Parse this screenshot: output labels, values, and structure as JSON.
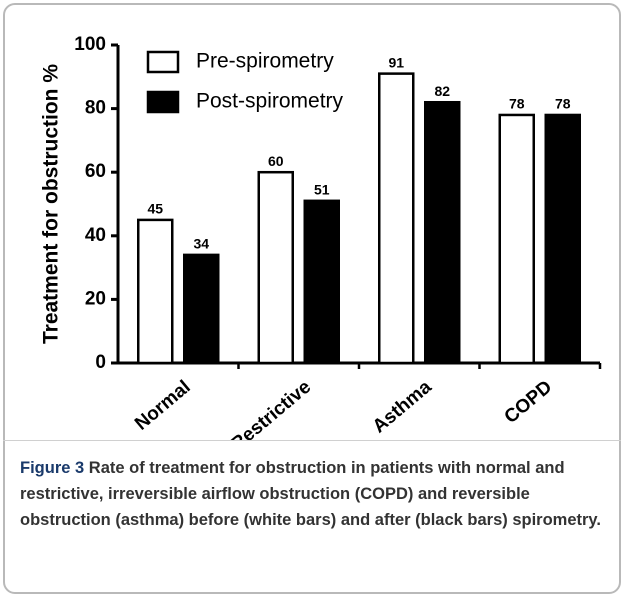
{
  "chart_data": {
    "type": "bar",
    "y_label": "Treatment for obstruction %",
    "categories": [
      "Normal",
      "Restrictive",
      "Asthma",
      "COPD"
    ],
    "series": [
      {
        "name": "Pre-spirometry",
        "color": "#ffffff",
        "values": [
          45,
          60,
          91,
          78
        ]
      },
      {
        "name": "Post-spirometry",
        "color": "#000000",
        "values": [
          34,
          51,
          82,
          78
        ]
      }
    ],
    "ylim": [
      0,
      100
    ],
    "yticks": [
      0,
      20,
      40,
      60,
      80,
      100
    ],
    "legend": "upper-left"
  },
  "caption": {
    "label": "Figure 3",
    "text": "Rate of treatment for obstruction in patients with normal and restrictive, irreversible airflow obstruction (COPD) and reversible obstruction (asthma) before (white bars) and after (black bars) spirometry."
  }
}
